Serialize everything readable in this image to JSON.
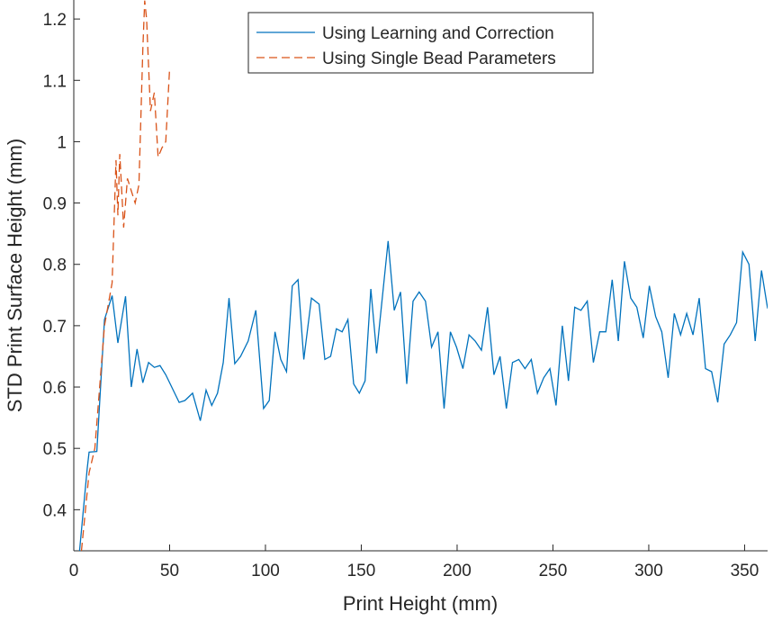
{
  "chart_data": {
    "type": "line",
    "xlabel": "Print Height (mm)",
    "ylabel": "STD Print Surface Height (mm)",
    "xlim": [
      0,
      362
    ],
    "ylim": [
      0.333,
      1.231
    ],
    "xticks": [
      0,
      50,
      100,
      150,
      200,
      250,
      300,
      350
    ],
    "yticks": [
      0.4,
      0.5,
      0.6,
      0.7,
      0.8,
      0.9,
      1,
      1.1,
      1.2
    ],
    "grid": false,
    "legend": "top-center",
    "series": [
      {
        "name": "Using Learning and Correction",
        "color": "#0072bd",
        "dash": false,
        "x": [
          3,
          7,
          8,
          12,
          16,
          20,
          23,
          27,
          30,
          33,
          36,
          39,
          42,
          45,
          48,
          55,
          58,
          62,
          66,
          69,
          72,
          75,
          78,
          81,
          84,
          87,
          91,
          95,
          99,
          102,
          105,
          108,
          111,
          114,
          117,
          120,
          124,
          128,
          131,
          134,
          137,
          140,
          143,
          146,
          149,
          152,
          155,
          158,
          164,
          167.2,
          170.5,
          173.7,
          177,
          180.2,
          183.5,
          186.7,
          190,
          193.2,
          196.5,
          199.7,
          203,
          206.2,
          209.4,
          212.7,
          215.9,
          219.2,
          222.4,
          225.7,
          228.9,
          232.2,
          235.4,
          238.7,
          241.9,
          245.2,
          248.4,
          251.6,
          254.9,
          258.1,
          261.4,
          264.6,
          267.9,
          271.1,
          274.4,
          277.6,
          280.9,
          284.1,
          287.3,
          290.6,
          293.8,
          297.1,
          300.3,
          303.6,
          306.8,
          310.1,
          313.3,
          316.6,
          319.8,
          323.1,
          326.3,
          329.6,
          332.8,
          336,
          339.3,
          342.5,
          345.8,
          349,
          352.3,
          355.5,
          358.8,
          362
        ],
        "values": [
          0.333,
          0.467,
          0.494,
          0.495,
          0.71,
          0.749,
          0.672,
          0.748,
          0.6,
          0.662,
          0.607,
          0.64,
          0.632,
          0.635,
          0.62,
          0.575,
          0.578,
          0.59,
          0.545,
          0.595,
          0.57,
          0.59,
          0.64,
          0.745,
          0.638,
          0.65,
          0.675,
          0.725,
          0.565,
          0.578,
          0.69,
          0.645,
          0.625,
          0.765,
          0.775,
          0.645,
          0.745,
          0.735,
          0.645,
          0.65,
          0.695,
          0.69,
          0.71,
          0.605,
          0.59,
          0.61,
          0.76,
          0.655,
          0.838,
          0.725,
          0.755,
          0.605,
          0.74,
          0.755,
          0.74,
          0.665,
          0.69,
          0.565,
          0.69,
          0.665,
          0.63,
          0.685,
          0.675,
          0.66,
          0.73,
          0.62,
          0.65,
          0.565,
          0.64,
          0.645,
          0.63,
          0.645,
          0.59,
          0.615,
          0.63,
          0.57,
          0.7,
          0.61,
          0.73,
          0.725,
          0.74,
          0.64,
          0.69,
          0.69,
          0.775,
          0.675,
          0.805,
          0.745,
          0.73,
          0.68,
          0.765,
          0.715,
          0.69,
          0.615,
          0.72,
          0.685,
          0.72,
          0.685,
          0.745,
          0.63,
          0.625,
          0.575,
          0.67,
          0.685,
          0.705,
          0.82,
          0.8,
          0.675,
          0.79,
          0.728
        ]
      },
      {
        "name": "Using Single Bead Parameters",
        "color": "#d95319",
        "dash": true,
        "x": [
          4,
          8,
          11,
          16,
          20,
          22,
          23,
          24,
          26,
          28,
          30,
          32,
          34,
          36,
          37,
          38,
          40,
          42,
          44,
          46,
          48,
          50
        ],
        "values": [
          0.333,
          0.46,
          0.5,
          0.7,
          0.77,
          0.97,
          0.88,
          0.98,
          0.86,
          0.94,
          0.92,
          0.9,
          0.93,
          1.15,
          1.23,
          1.2,
          1.05,
          1.08,
          0.975,
          0.99,
          1.0,
          1.12
        ]
      }
    ]
  }
}
